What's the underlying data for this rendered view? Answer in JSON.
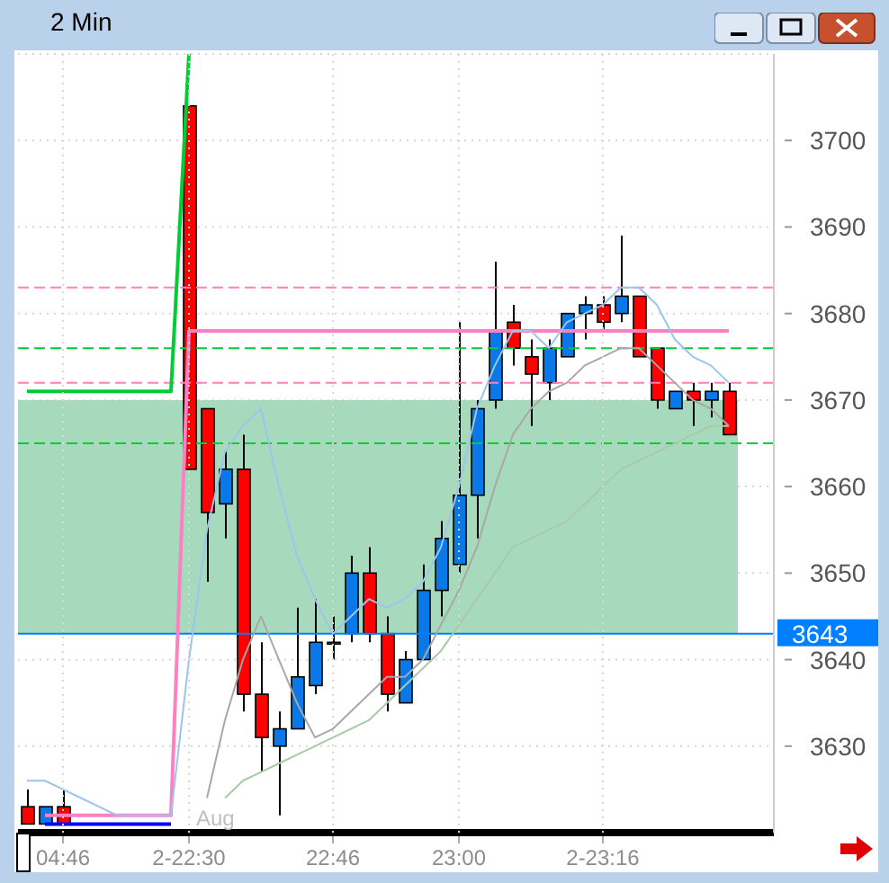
{
  "chart_data": {
    "type": "candlestick",
    "title": "2 Min",
    "categories": [
      null,
      null,
      "04:46",
      null,
      null,
      null,
      null,
      null,
      null,
      "2-22:30",
      null,
      null,
      null,
      null,
      null,
      null,
      null,
      "22:46",
      null,
      null,
      null,
      null,
      null,
      null,
      "23:00",
      null,
      null,
      null,
      null,
      null,
      null,
      null,
      "2-23:16",
      null,
      null,
      null,
      null,
      null,
      null,
      null
    ],
    "ohlc": [
      [
        3623,
        3625,
        3621,
        3621
      ],
      [
        3621,
        3623,
        3621,
        3623
      ],
      [
        3623,
        3625,
        3621,
        3621
      ],
      null,
      null,
      null,
      null,
      null,
      null,
      [
        3704,
        3704,
        3662,
        3662
      ],
      [
        3669,
        3669,
        3649,
        3657
      ],
      [
        3658,
        3664,
        3654,
        3662
      ],
      [
        3662,
        3666,
        3634,
        3636
      ],
      [
        3636,
        3642,
        3627,
        3631
      ],
      [
        3630,
        3634,
        3622,
        3632
      ],
      [
        3632,
        3646,
        3632,
        3638
      ],
      [
        3637,
        3647,
        3636,
        3642
      ],
      [
        3642,
        3645,
        3640,
        3642
      ],
      [
        3643,
        3652,
        3642,
        3650
      ],
      [
        3650,
        3653,
        3642,
        3643
      ],
      [
        3643,
        3645,
        3634,
        3636
      ],
      [
        3635,
        3641,
        3635,
        3640
      ],
      [
        3640,
        3651,
        3640,
        3648
      ],
      [
        3648,
        3656,
        3645,
        3654
      ],
      [
        3651,
        3679,
        3650,
        3659
      ],
      [
        3659,
        3670,
        3654,
        3669
      ],
      [
        3670,
        3686,
        3669,
        3678
      ],
      [
        3679,
        3681,
        3674,
        3676
      ],
      [
        3675,
        3677,
        3667,
        3673
      ],
      [
        3672,
        3677,
        3670,
        3676
      ],
      [
        3675,
        3680,
        3675,
        3680
      ],
      [
        3680,
        3682,
        3677,
        3681
      ],
      [
        3681,
        3682,
        3678,
        3679
      ],
      [
        3680,
        3689,
        3679,
        3682
      ],
      [
        3682,
        3682,
        3675,
        3675
      ],
      [
        3676,
        3676,
        3669,
        3670
      ],
      [
        3669,
        3671,
        3669,
        3671
      ],
      [
        3671,
        3672,
        3667,
        3670
      ],
      [
        3670,
        3672,
        3668,
        3671
      ],
      [
        3671,
        3672,
        3666,
        3666
      ]
    ],
    "colors": [
      "#ff0000",
      "#0a78e6",
      "#ff0000",
      null,
      null,
      null,
      null,
      null,
      null,
      "#ff0000",
      "#ff0000",
      "#0a78e6",
      "#ff0000",
      "#ff0000",
      "#0a78e6",
      "#0a78e6",
      "#0a78e6",
      "#0a78e6",
      "#0a78e6",
      "#ff0000",
      "#ff0000",
      "#0a78e6",
      "#0a78e6",
      "#0a78e6",
      "#0a78e6",
      "#0a78e6",
      "#0a78e6",
      "#ff0000",
      "#ff0000",
      "#0a78e6",
      "#0a78e6",
      "#0a78e6",
      "#ff0000",
      "#0a78e6",
      "#ff0000",
      "#ff0000",
      "#0a78e6",
      "#ff0000",
      "#0a78e6",
      "#ff0000"
    ],
    "series": [
      {
        "type": "line",
        "color": "#9cc4ec",
        "values": [
          3626,
          3626,
          3625,
          3624,
          3623,
          3622,
          3622,
          3622,
          3622,
          3640,
          3655,
          3664,
          3667,
          3669,
          3660,
          3652,
          3647,
          3643,
          3645,
          3647,
          3646,
          3647,
          3649,
          3653,
          3660,
          3669,
          3674,
          3678,
          3678,
          3676,
          3679,
          3680,
          3681,
          3683,
          3683,
          3681,
          3677,
          3675,
          3674,
          3672
        ]
      },
      {
        "type": "line",
        "color": "#a8a8a8",
        "values": [
          null,
          null,
          null,
          null,
          null,
          null,
          null,
          null,
          null,
          null,
          3624,
          3633,
          3640,
          3645,
          3640,
          3635,
          3631,
          3632,
          3634,
          3636,
          3638,
          3638,
          3640,
          3644,
          3648,
          3653,
          3660,
          3666,
          3669,
          3671,
          3672,
          3674,
          3675,
          3676,
          3676,
          3674,
          3672,
          3670,
          3669,
          3667
        ]
      },
      {
        "type": "line",
        "color": "#a9c9a9",
        "values": [
          null,
          null,
          null,
          null,
          null,
          null,
          null,
          null,
          null,
          null,
          null,
          3624,
          3626,
          3627,
          3628,
          3629,
          3630,
          3631,
          3632,
          3633,
          3635,
          3637,
          3639,
          3641,
          3644,
          3647,
          3650,
          3653,
          3654,
          3655,
          3656,
          3658,
          3660,
          3662,
          3663,
          3664,
          3665,
          3666,
          3667,
          3667
        ]
      },
      {
        "type": "line",
        "color": "#00cc33",
        "values": [
          3671,
          3671,
          3671,
          3671,
          3671,
          3671,
          3671,
          3671,
          3671,
          3710,
          null,
          null,
          null,
          null,
          null,
          null,
          null,
          null,
          null,
          null,
          null,
          null,
          null,
          null,
          null,
          null,
          null,
          null,
          null,
          null,
          null,
          null,
          null,
          null,
          null,
          null,
          null,
          null,
          null,
          null
        ]
      },
      {
        "type": "line",
        "color": "#ff80c0",
        "values": [
          null,
          3622,
          3622,
          3622,
          3622,
          3622,
          3622,
          3622,
          3622,
          3678,
          3678,
          3678,
          3678,
          3678,
          3678,
          3678,
          3678,
          3678,
          3678,
          3678,
          3678,
          3678,
          3678,
          3678,
          3678,
          3678,
          3678,
          3678,
          3678,
          3678,
          3678,
          3678,
          3678,
          3678,
          3678,
          3678,
          3678,
          3678,
          3678,
          3678
        ]
      },
      {
        "type": "line",
        "color": "#0000ff",
        "values": [
          null,
          3621,
          3621,
          3621,
          3621,
          3621,
          3621,
          3621,
          3621,
          null,
          null,
          null,
          null,
          null,
          null,
          null,
          null,
          null,
          null,
          null,
          null,
          null,
          null,
          null,
          null,
          null,
          null,
          null,
          null,
          null,
          null,
          null,
          null,
          null,
          null,
          null,
          null,
          null,
          null,
          null
        ]
      }
    ],
    "ylim": [
      3620,
      3710
    ],
    "yticks": [
      3630,
      3640,
      3650,
      3660,
      3670,
      3680,
      3690,
      3700
    ],
    "ref_lines": [
      {
        "axis": "y",
        "value": 3643,
        "label": "3643",
        "color": "#0080ff"
      },
      {
        "axis": "y",
        "value": 3683,
        "color": "#ff80c0",
        "line_style": "dashed"
      },
      {
        "axis": "y",
        "value": 3672,
        "color": "#ff80c0",
        "line_style": "dashed"
      },
      {
        "axis": "y",
        "value": 3676,
        "color": "#00cc33",
        "line_style": "dashed"
      },
      {
        "axis": "y",
        "value": 3665,
        "color": "#00cc33",
        "line_style": "dashed"
      }
    ],
    "bands": [
      {
        "axis": "y",
        "from": 3643,
        "to": 3670,
        "color": "#9dd6b5"
      }
    ],
    "annotations": [
      "Aug"
    ],
    "grid": true
  }
}
